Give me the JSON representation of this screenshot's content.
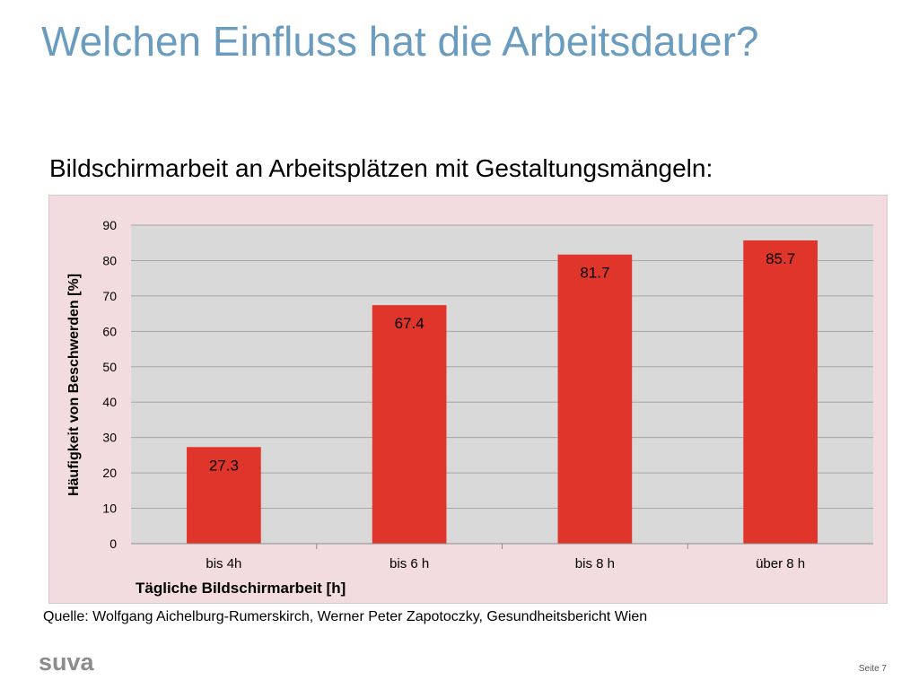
{
  "slide": {
    "title": "Welchen Einfluss hat die Arbeitsdauer?",
    "subtitle": "Bildschirmarbeit an Arbeitsplätzen mit Gestaltungsmängeln:",
    "source": "Quelle: Wolfgang Aichelburg-Rumerskirch, Werner Peter Zapotoczky, Gesundheitsbericht Wien",
    "logo": "suva",
    "page_number": "Seite 7"
  },
  "colors": {
    "title": "#6a9cbf",
    "frame_background": "#f2dcdf",
    "plot_background": "#d9d9d9",
    "bar": "#e0352b"
  },
  "chart_data": {
    "type": "bar",
    "categories": [
      "bis 4h",
      "bis 6 h",
      "bis 8 h",
      "über 8 h"
    ],
    "values": [
      27.3,
      67.4,
      81.7,
      85.7
    ],
    "data_labels": [
      "27.3",
      "67.4",
      "81.7",
      "85.7"
    ],
    "xlabel": "Tägliche Bildschirmarbeit [h]",
    "ylabel": "Häufigkeit von Beschwerden [%]",
    "ylim": [
      0,
      90
    ],
    "yticks": [
      0,
      10,
      20,
      30,
      40,
      50,
      60,
      70,
      80,
      90
    ],
    "grid": true,
    "legend": "none"
  }
}
